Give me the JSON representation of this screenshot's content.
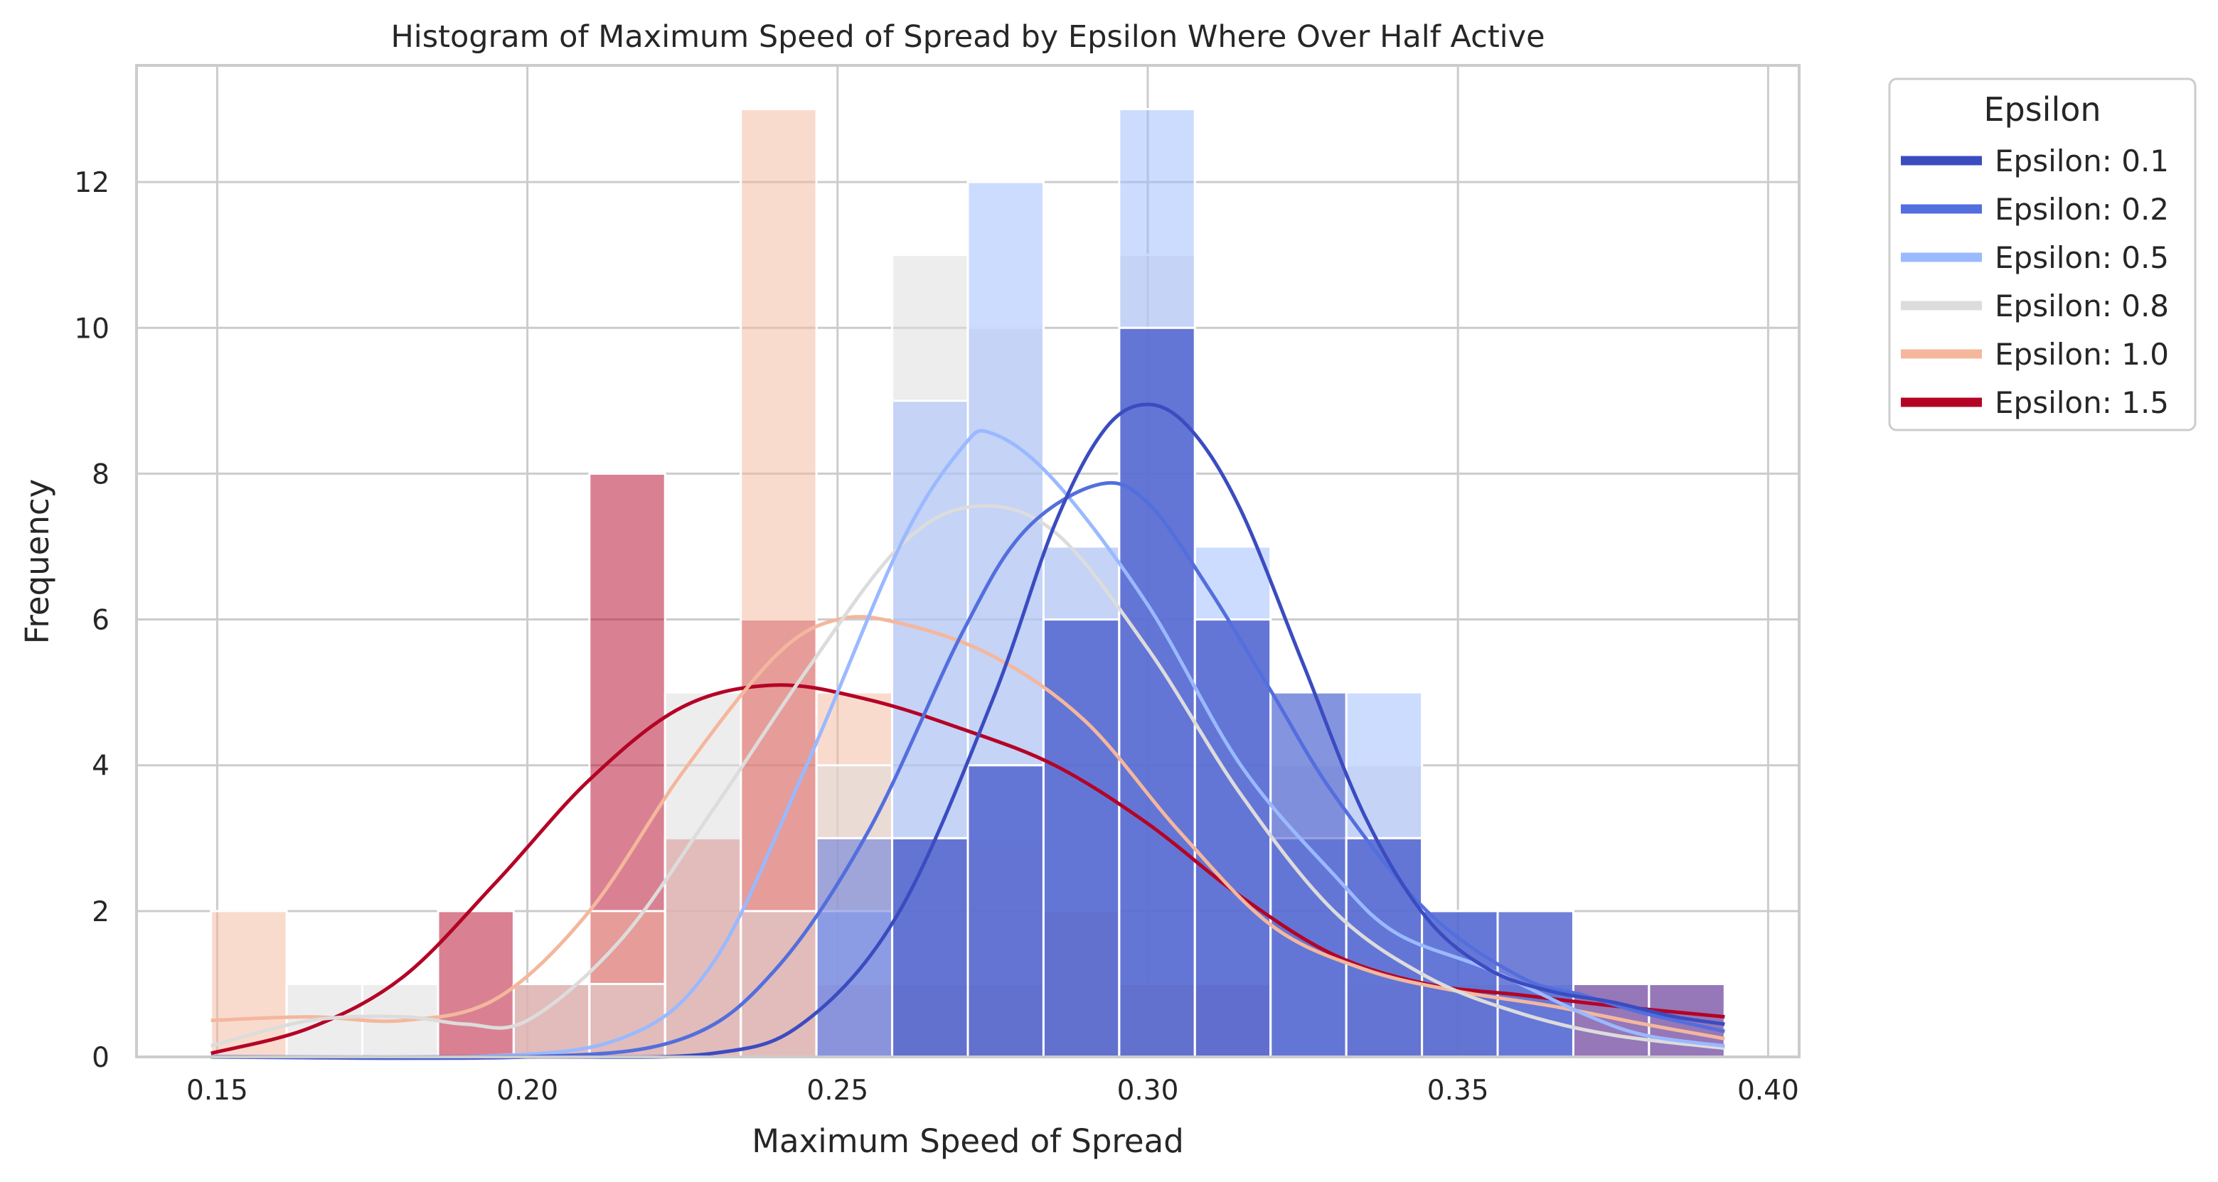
{
  "chart_data": {
    "type": "histogram",
    "title": "Histogram of Maximum Speed of Spread by Epsilon Where Over Half Active",
    "xlabel": "Maximum Speed of Spread",
    "ylabel": "Frequency",
    "xlim": [
      0.137,
      0.405
    ],
    "ylim": [
      0,
      13.6
    ],
    "xticks": [
      0.15,
      0.2,
      0.25,
      0.3,
      0.35,
      0.4
    ],
    "xtick_labels": [
      "0.15",
      "0.20",
      "0.25",
      "0.30",
      "0.35",
      "0.40"
    ],
    "yticks": [
      0,
      2,
      4,
      6,
      8,
      10,
      12
    ],
    "ytick_labels": [
      "0",
      "2",
      "4",
      "6",
      "8",
      "10",
      "12"
    ],
    "grid": true,
    "legend": {
      "title": "Epsilon",
      "placement": "outside right, top",
      "entries": [
        "Epsilon: 0.1",
        "Epsilon: 0.2",
        "Epsilon: 0.5",
        "Epsilon: 0.8",
        "Epsilon: 1.0",
        "Epsilon: 1.5"
      ]
    },
    "bin_edges": [
      0.149,
      0.1612,
      0.1734,
      0.1856,
      0.1978,
      0.21,
      0.2222,
      0.2344,
      0.2466,
      0.2588,
      0.271,
      0.2832,
      0.2954,
      0.3076,
      0.3198,
      0.332,
      0.3442,
      0.3564,
      0.3686,
      0.3808,
      0.393
    ],
    "series": [
      {
        "name": "Epsilon: 0.1",
        "color": "#3b4cc0",
        "counts": [
          0,
          0,
          0,
          0,
          0,
          0,
          0,
          0,
          0,
          3,
          4,
          6,
          10,
          6,
          5,
          3,
          2,
          2,
          0,
          0
        ],
        "kde_x": [
          0.149,
          0.2,
          0.23,
          0.245,
          0.26,
          0.275,
          0.285,
          0.293,
          0.3,
          0.307,
          0.315,
          0.325,
          0.335,
          0.345,
          0.355,
          0.365,
          0.375,
          0.385,
          0.393
        ],
        "kde_y": [
          0,
          0,
          0.05,
          0.5,
          2.0,
          4.9,
          7.3,
          8.6,
          8.95,
          8.6,
          7.5,
          5.4,
          3.3,
          1.9,
          1.2,
          0.9,
          0.75,
          0.55,
          0.45
        ]
      },
      {
        "name": "Epsilon: 0.2",
        "color": "#536edd",
        "counts": [
          0,
          0,
          0,
          0,
          0,
          0,
          0,
          0,
          3,
          3,
          4,
          6,
          10,
          6,
          3,
          3,
          2,
          2,
          1,
          1
        ],
        "kde_x": [
          0.149,
          0.2,
          0.225,
          0.24,
          0.255,
          0.27,
          0.28,
          0.292,
          0.3,
          0.31,
          0.32,
          0.33,
          0.345,
          0.36,
          0.37,
          0.38,
          0.393
        ],
        "kde_y": [
          0,
          0,
          0.25,
          1.2,
          3.1,
          5.8,
          7.2,
          7.85,
          7.6,
          6.4,
          5.0,
          3.6,
          2.0,
          1.1,
          0.85,
          0.6,
          0.35
        ]
      },
      {
        "name": "Epsilon: 0.5",
        "color": "#9ab9ff",
        "counts": [
          0,
          0,
          0,
          0,
          0,
          0,
          0,
          0,
          2,
          9,
          12,
          7,
          13,
          7,
          5,
          5,
          2,
          1,
          0,
          0
        ],
        "kde_x": [
          0.149,
          0.19,
          0.215,
          0.23,
          0.245,
          0.26,
          0.27,
          0.275,
          0.285,
          0.3,
          0.315,
          0.33,
          0.34,
          0.355,
          0.37,
          0.38,
          0.393
        ],
        "kde_y": [
          0,
          0,
          0.25,
          1.3,
          4.0,
          7.0,
          8.35,
          8.55,
          7.9,
          6.2,
          4.0,
          2.5,
          1.7,
          1.2,
          0.6,
          0.3,
          0.15
        ]
      },
      {
        "name": "Epsilon: 0.8",
        "color": "#dddcdc",
        "counts": [
          0,
          1,
          1,
          0,
          1,
          1,
          5,
          2,
          4,
          11,
          10,
          7,
          11,
          6,
          4,
          4,
          1,
          0,
          0,
          0
        ],
        "kde_x": [
          0.149,
          0.165,
          0.18,
          0.19,
          0.2,
          0.215,
          0.23,
          0.245,
          0.26,
          0.272,
          0.285,
          0.3,
          0.315,
          0.33,
          0.345,
          0.36,
          0.375,
          0.393
        ],
        "kde_y": [
          0.15,
          0.5,
          0.55,
          0.45,
          0.5,
          1.6,
          3.4,
          5.3,
          7.0,
          7.55,
          7.2,
          5.6,
          3.6,
          2.0,
          1.1,
          0.6,
          0.3,
          0.12
        ]
      },
      {
        "name": "Epsilon: 1.0",
        "color": "#f4b79d",
        "counts": [
          2,
          0,
          0,
          0,
          1,
          2,
          3,
          13,
          5,
          3,
          3,
          2,
          1,
          0,
          0,
          1,
          1,
          0,
          0,
          0
        ],
        "kde_x": [
          0.149,
          0.165,
          0.18,
          0.195,
          0.21,
          0.225,
          0.24,
          0.25,
          0.26,
          0.275,
          0.29,
          0.305,
          0.32,
          0.335,
          0.35,
          0.365,
          0.38,
          0.393
        ],
        "kde_y": [
          0.5,
          0.55,
          0.5,
          0.8,
          2.0,
          3.9,
          5.5,
          6.0,
          5.95,
          5.5,
          4.6,
          3.1,
          1.8,
          1.2,
          0.9,
          0.7,
          0.45,
          0.25
        ]
      },
      {
        "name": "Epsilon: 1.5",
        "color": "#b40426",
        "counts": [
          0,
          0,
          0,
          2,
          1,
          8,
          3,
          6,
          1,
          1,
          1,
          2,
          1,
          1,
          0,
          0,
          0,
          0,
          1,
          1
        ],
        "kde_x": [
          0.149,
          0.165,
          0.18,
          0.195,
          0.21,
          0.225,
          0.24,
          0.255,
          0.27,
          0.285,
          0.3,
          0.315,
          0.33,
          0.345,
          0.36,
          0.375,
          0.393
        ],
        "kde_y": [
          0.05,
          0.4,
          1.1,
          2.4,
          3.8,
          4.8,
          5.1,
          4.9,
          4.5,
          4.0,
          3.2,
          2.2,
          1.4,
          1.0,
          0.85,
          0.7,
          0.55
        ]
      }
    ]
  }
}
